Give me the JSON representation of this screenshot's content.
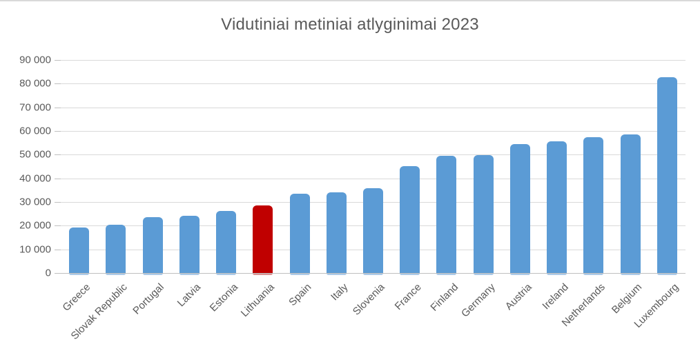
{
  "chart_data": {
    "type": "bar",
    "title": "Vidutiniai metiniai atlyginimai 2023",
    "categories": [
      "Greece",
      "Slovak Republic",
      "Portugal",
      "Latvia",
      "Estonia",
      "Lithuania",
      "Spain",
      "Italy",
      "Slovenia",
      "France",
      "Finland",
      "Germany",
      "Austria",
      "Ireland",
      "Netherlands",
      "Belgium",
      "Luxembourg"
    ],
    "values": [
      19200,
      20500,
      23700,
      24300,
      26200,
      28400,
      33400,
      34100,
      35800,
      45200,
      49400,
      49700,
      54600,
      55700,
      57400,
      58500,
      82700
    ],
    "highlight_category": "Lithuania",
    "xlabel": "",
    "ylabel": "",
    "ylim": [
      0,
      90000
    ],
    "yticks": {
      "values": [
        0,
        10000,
        20000,
        30000,
        40000,
        50000,
        60000,
        70000,
        80000,
        90000
      ],
      "labels": [
        "0",
        "10 000",
        "20 000",
        "30 000",
        "40 000",
        "50 000",
        "60 000",
        "70 000",
        "80 000",
        "90 000"
      ]
    },
    "grid": true,
    "legend": "none",
    "colors": {
      "bar": "#5b9bd5",
      "bar_light": "#aecbe8",
      "highlight": "#c00000",
      "highlight_light": "#d99595",
      "gridline": "#d9d9d9",
      "axis": "#bfbfbf",
      "text": "#595959"
    }
  }
}
